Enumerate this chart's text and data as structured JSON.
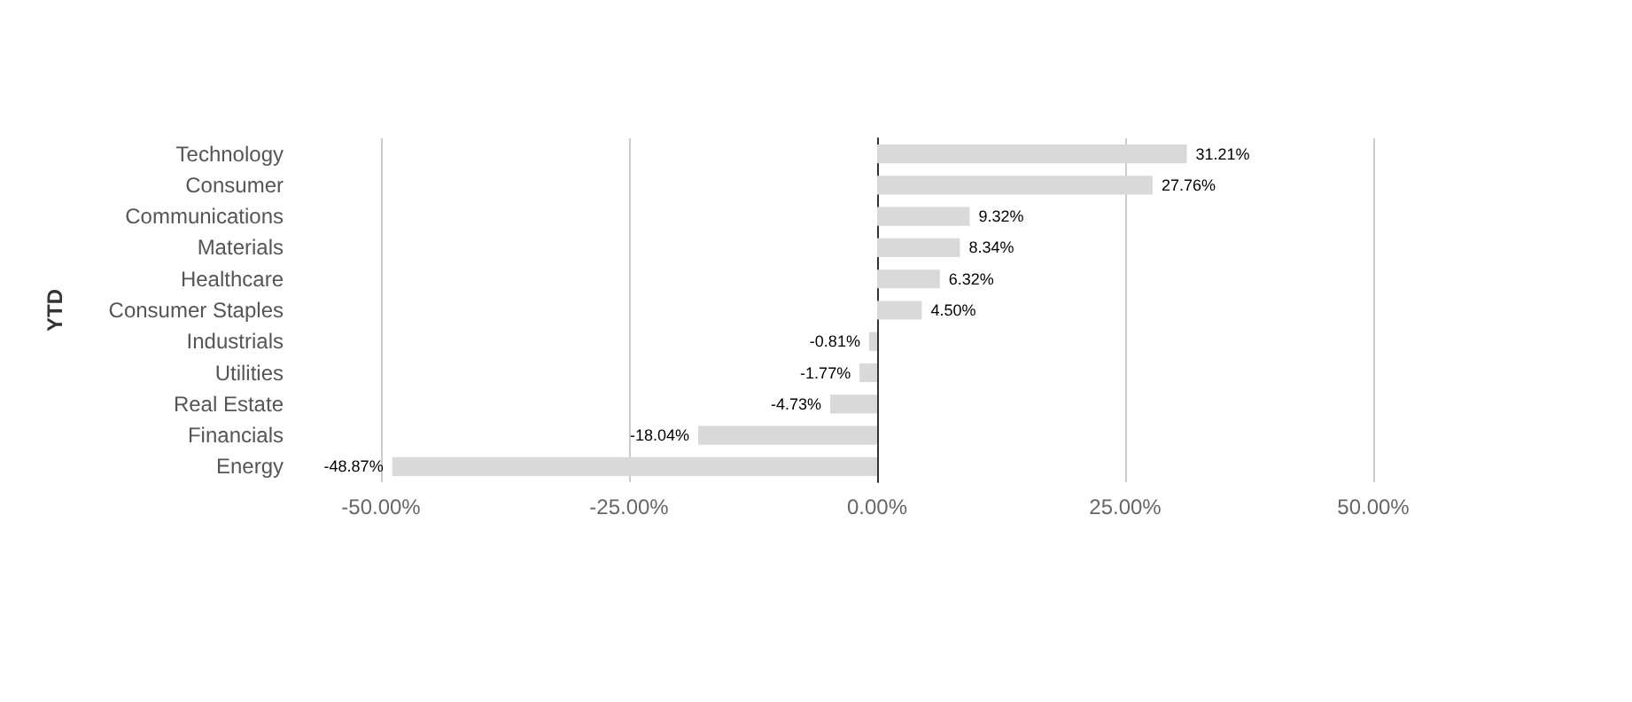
{
  "chart_data": {
    "type": "bar",
    "orientation": "horizontal",
    "ylabel": "YTD",
    "categories": [
      "Technology",
      "Consumer",
      "Communications",
      "Materials",
      "Healthcare",
      "Consumer Staples",
      "Industrials",
      "Utilities",
      "Real Estate",
      "Financials",
      "Energy"
    ],
    "values": [
      31.21,
      27.76,
      9.32,
      8.34,
      6.32,
      4.5,
      -0.81,
      -1.77,
      -4.73,
      -18.04,
      -48.87
    ],
    "value_labels": [
      "31.21%",
      "27.76%",
      "9.32%",
      "8.34%",
      "6.32%",
      "4.50%",
      "-0.81%",
      "-1.77%",
      "-4.73%",
      "-18.04%",
      "-48.87%"
    ],
    "color": "#d9d9d9",
    "xlim": [
      -50,
      50
    ],
    "xticks": [
      {
        "value": -50,
        "label": "-50.00%"
      },
      {
        "value": -25,
        "label": "-25.00%"
      },
      {
        "value": 0,
        "label": "0.00%"
      },
      {
        "value": 25,
        "label": "25.00%"
      },
      {
        "value": 50,
        "label": "50.00%"
      }
    ],
    "grid": "x"
  }
}
